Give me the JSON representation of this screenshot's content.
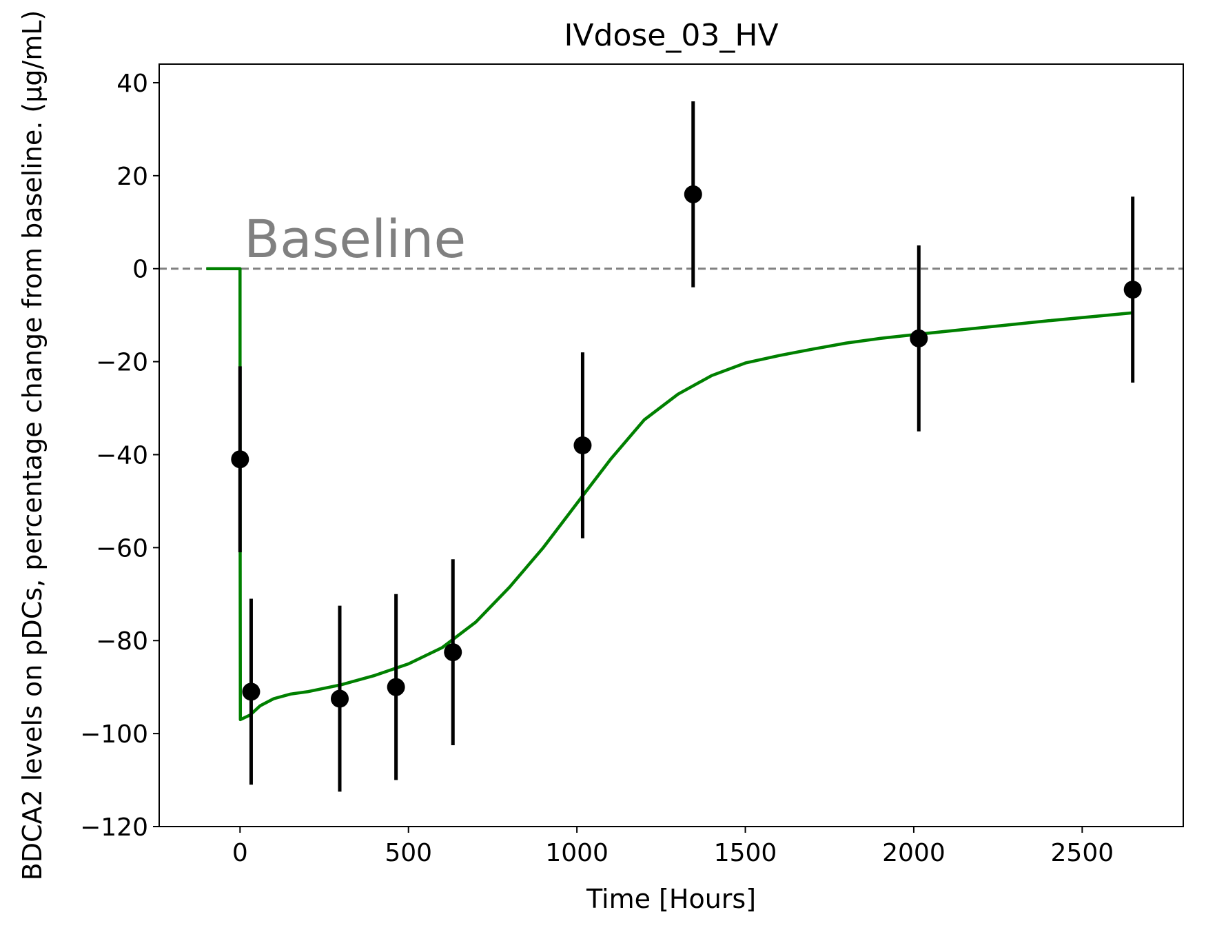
{
  "chart_data": {
    "type": "scatter",
    "title": "IVdose_03_HV",
    "xlabel": "Time [Hours]",
    "ylabel": "BDCA2 levels on pDCs, percentage change from baseline. (µg/mL)",
    "xlim": [
      -240,
      2800
    ],
    "ylim": [
      -120,
      44
    ],
    "xticks": [
      0,
      500,
      1000,
      1500,
      2000,
      2500
    ],
    "yticks": [
      40,
      20,
      0,
      -20,
      -40,
      -60,
      -80,
      -100,
      -120
    ],
    "grid": false,
    "baseline": {
      "y": 0,
      "label": "Baseline",
      "color": "#808080",
      "style": "dashed"
    },
    "series": [
      {
        "kind": "errorbar",
        "color": "#000000",
        "points": [
          {
            "x": 0,
            "y": -41,
            "yerr": 20
          },
          {
            "x": 33,
            "y": -91,
            "yerr": 20
          },
          {
            "x": 296,
            "y": -92.5,
            "yerr": 20
          },
          {
            "x": 463,
            "y": -90,
            "yerr": 20
          },
          {
            "x": 632,
            "y": -82.5,
            "yerr": 20
          },
          {
            "x": 1017,
            "y": -38,
            "yerr": 20
          },
          {
            "x": 1345,
            "y": 16,
            "yerr": 20
          },
          {
            "x": 2015,
            "y": -15,
            "yerr": 20
          },
          {
            "x": 2650,
            "y": -4.5,
            "yerr": 20
          }
        ]
      },
      {
        "kind": "line",
        "color": "#008000",
        "x": [
          -100,
          0,
          0.1,
          1,
          30,
          60,
          100,
          150,
          200,
          300,
          400,
          500,
          600,
          700,
          800,
          900,
          1000,
          1100,
          1200,
          1300,
          1400,
          1500,
          1600,
          1700,
          1800,
          1900,
          2000,
          2200,
          2400,
          2650
        ],
        "y": [
          0,
          0,
          -50,
          -97,
          -96,
          -94,
          -92.5,
          -91.5,
          -91,
          -89.5,
          -87.5,
          -85,
          -81.5,
          -76,
          -68.5,
          -60,
          -50.5,
          -41,
          -32.5,
          -27,
          -23,
          -20.3,
          -18.7,
          -17.3,
          -16,
          -15,
          -14.2,
          -12.7,
          -11.2,
          -9.5
        ]
      }
    ]
  }
}
